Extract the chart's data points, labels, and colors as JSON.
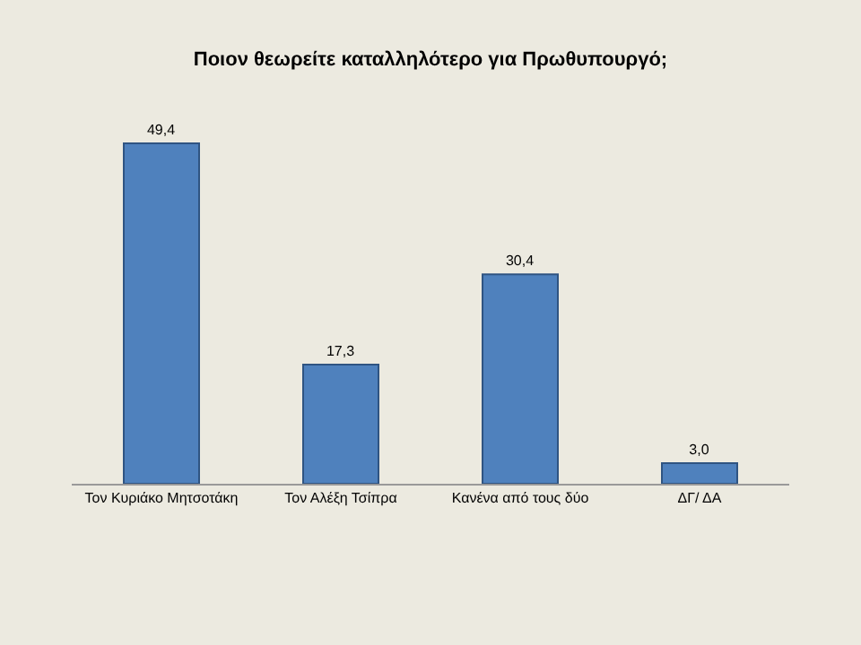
{
  "chart_data": {
    "type": "bar",
    "title": "Ποιον θεωρείτε καταλληλότερο για Πρωθυπουργό;",
    "categories": [
      "Τον Κυριάκο Μητσοτάκη",
      "Τον Αλέξη Τσίπρα",
      "Κανένα από τους δύο",
      "ΔΓ/ ΔΑ"
    ],
    "values": [
      49.4,
      17.3,
      30.4,
      3.0
    ],
    "value_labels": [
      "49,4",
      "17,3",
      "30,4",
      "3,0"
    ],
    "color": "#4f81bd",
    "grid": false
  }
}
